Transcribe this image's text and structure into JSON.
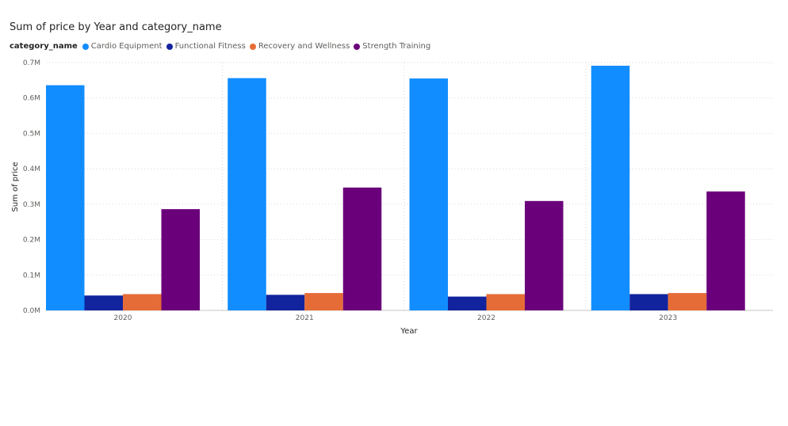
{
  "chart_data": {
    "type": "bar",
    "title": "Sum of price by Year and category_name",
    "legend_title": "category_name",
    "legend_position": "top-left",
    "xlabel": "Year",
    "ylabel": "Sum of price",
    "categories": [
      "2020",
      "2021",
      "2022",
      "2023"
    ],
    "ylim": [
      0,
      700000
    ],
    "yticks": [
      0,
      100000,
      200000,
      300000,
      400000,
      500000,
      600000,
      700000
    ],
    "ytick_labels": [
      "0.0M",
      "0.1M",
      "0.2M",
      "0.3M",
      "0.4M",
      "0.5M",
      "0.6M",
      "0.7M"
    ],
    "grid": true,
    "series": [
      {
        "name": "Cardio Equipment",
        "color": "#118DFF",
        "values": [
          636000,
          656000,
          655000,
          691000
        ]
      },
      {
        "name": "Functional Fitness",
        "color": "#12239E",
        "values": [
          42000,
          44000,
          39000,
          46000
        ]
      },
      {
        "name": "Recovery and Wellness",
        "color": "#E66C37",
        "values": [
          46000,
          49000,
          46000,
          49000
        ]
      },
      {
        "name": "Strength Training",
        "color": "#6B007B",
        "values": [
          286000,
          347000,
          309000,
          336000
        ]
      }
    ]
  }
}
